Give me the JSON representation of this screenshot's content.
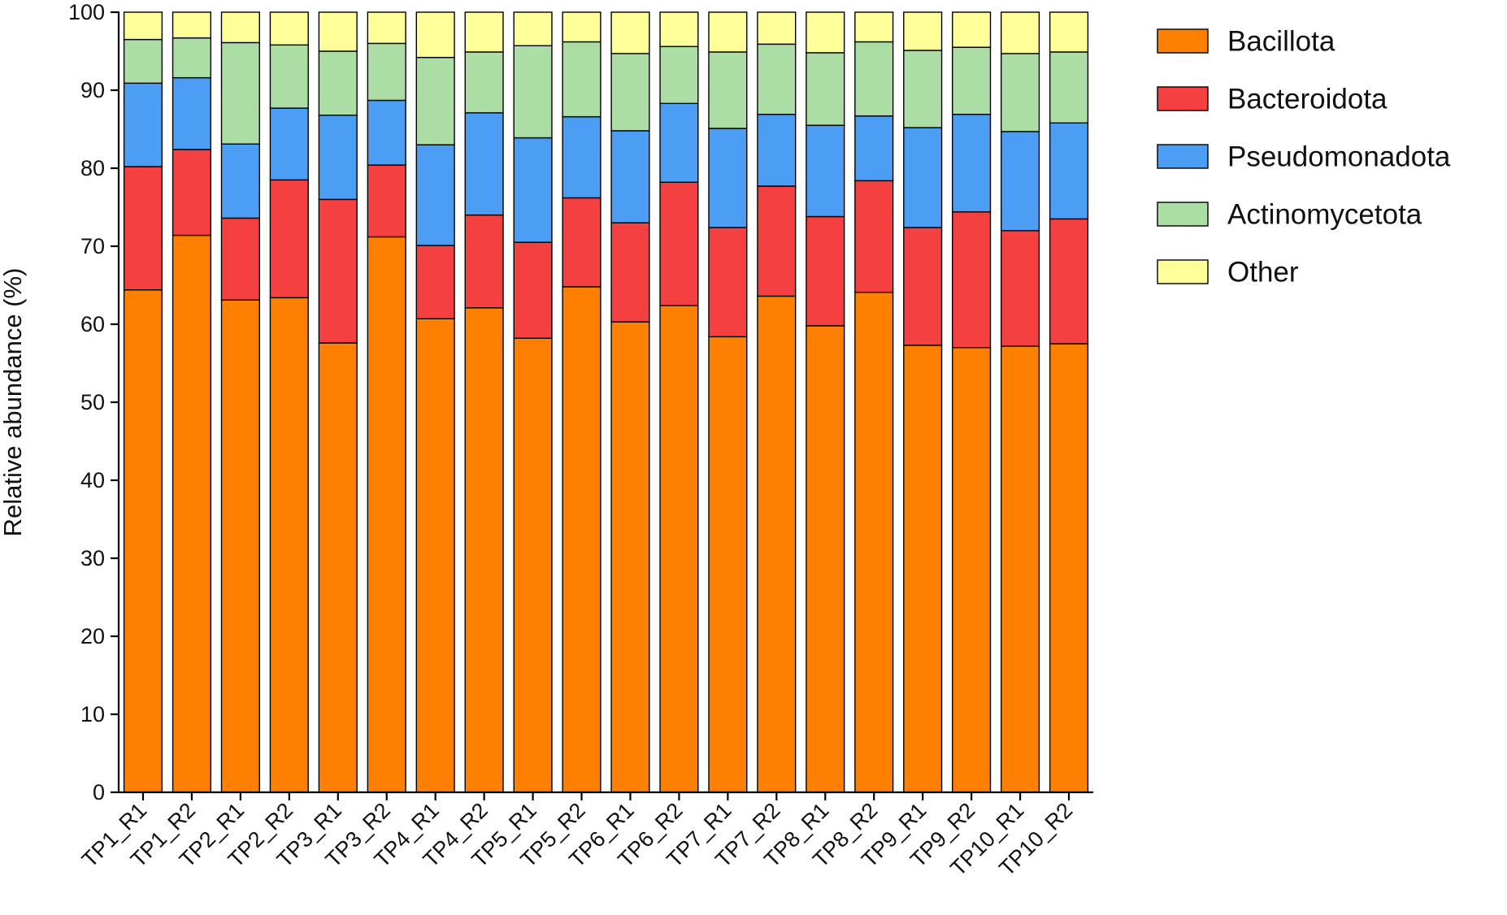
{
  "chart_data": {
    "type": "bar",
    "stacked": true,
    "title": "",
    "xlabel": "",
    "ylabel": "Relative abundance (%)",
    "ylim": [
      0,
      100
    ],
    "yticks": [
      "0",
      "10",
      "20",
      "30",
      "40",
      "50",
      "60",
      "70",
      "80",
      "90",
      "100"
    ],
    "grid": false,
    "legend_position": "top-right outside",
    "categories": [
      "TP1_R1",
      "TP1_R2",
      "TP2_R1",
      "TP2_R2",
      "TP3_R1",
      "TP3_R2",
      "TP4_R1",
      "TP4_R2",
      "TP5_R1",
      "TP5_R2",
      "TP6_R1",
      "TP6_R2",
      "TP7_R1",
      "TP7_R2",
      "TP8_R1",
      "TP8_R2",
      "TP9_R1",
      "TP9_R2",
      "TP10_R1",
      "TP10_R2"
    ],
    "series": [
      {
        "name": "Bacillota",
        "color": "#FF8000",
        "values": [
          64.4,
          71.4,
          63.1,
          63.4,
          57.6,
          71.2,
          60.7,
          62.1,
          58.2,
          64.8,
          60.3,
          62.4,
          58.4,
          63.6,
          59.8,
          64.1,
          57.3,
          57.0,
          57.2,
          57.5
        ]
      },
      {
        "name": "Bacteroidota",
        "color": "#F44040",
        "values": [
          15.8,
          11.0,
          10.5,
          15.1,
          18.4,
          9.2,
          9.4,
          11.9,
          12.3,
          11.4,
          12.7,
          15.8,
          14.0,
          14.1,
          14.0,
          14.3,
          15.1,
          17.4,
          14.8,
          16.0
        ]
      },
      {
        "name": "Pseudomonadota",
        "color": "#4C9EF5",
        "values": [
          10.7,
          9.2,
          9.5,
          9.2,
          10.8,
          8.3,
          12.9,
          13.1,
          13.4,
          10.4,
          11.8,
          10.1,
          12.7,
          9.2,
          11.7,
          8.3,
          12.8,
          12.5,
          12.7,
          12.3
        ]
      },
      {
        "name": "Actinomycetota",
        "color": "#ABDDA4",
        "values": [
          5.6,
          5.1,
          13.0,
          8.1,
          8.2,
          7.3,
          11.2,
          7.8,
          11.8,
          9.6,
          9.9,
          7.3,
          9.8,
          9.0,
          9.3,
          9.5,
          9.9,
          8.6,
          10.0,
          9.1
        ]
      },
      {
        "name": "Other",
        "color": "#FFFF99",
        "values": [
          3.5,
          3.3,
          3.9,
          4.2,
          5.0,
          4.0,
          5.8,
          5.1,
          4.3,
          3.8,
          5.3,
          4.4,
          5.1,
          4.1,
          5.2,
          3.8,
          4.9,
          4.5,
          5.3,
          5.1
        ]
      }
    ]
  }
}
